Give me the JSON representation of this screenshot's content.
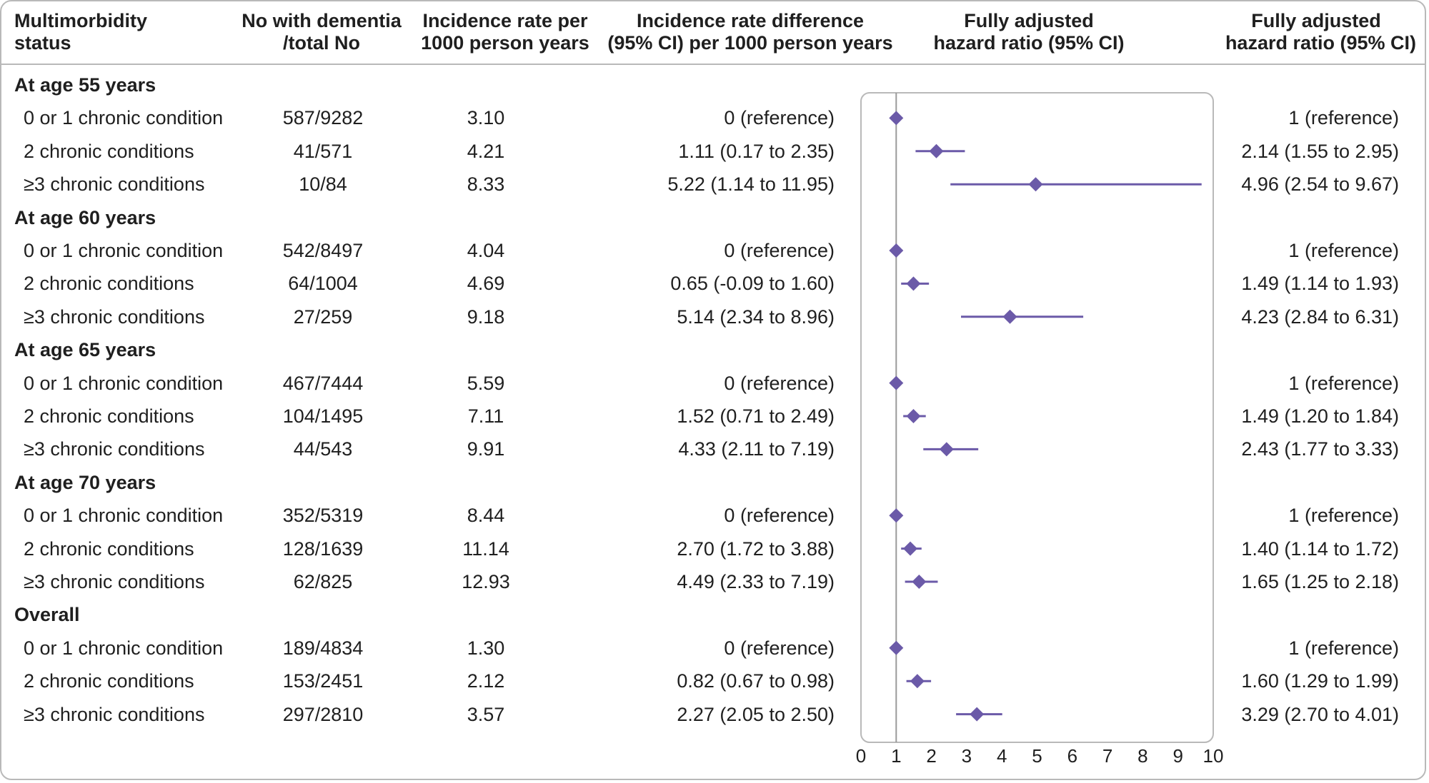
{
  "headers": {
    "status": [
      "Multimorbidity",
      "status"
    ],
    "n": [
      "No with dementia",
      "/total No"
    ],
    "ir": [
      "Incidence rate per",
      "1000 person years"
    ],
    "ird": [
      "Incidence rate difference",
      "(95% CI) per 1000 person years"
    ],
    "plot": [
      "Fully adjusted",
      "hazard ratio (95% CI)"
    ],
    "hr": [
      "Fully adjusted",
      "hazard ratio (95% CI)"
    ]
  },
  "rows": [
    {
      "type": "group",
      "label": "At age 55 years"
    },
    {
      "type": "data",
      "label": "0 or 1 chronic condition",
      "n": "587/9282",
      "ir": "3.10",
      "ird": "0 (reference)",
      "hr": "1 (reference)"
    },
    {
      "type": "data",
      "label": "2 chronic conditions",
      "n": "41/571",
      "ir": "4.21",
      "ird": "1.11 (0.17 to 2.35)",
      "hr": "2.14 (1.55 to 2.95)"
    },
    {
      "type": "data",
      "label": "≥3 chronic conditions",
      "n": "10/84",
      "ir": "8.33",
      "ird": "5.22 (1.14 to 11.95)",
      "hr": "4.96 (2.54 to 9.67)"
    },
    {
      "type": "group",
      "label": "At age 60 years"
    },
    {
      "type": "data",
      "label": "0 or 1 chronic condition",
      "n": "542/8497",
      "ir": "4.04",
      "ird": "0 (reference)",
      "hr": "1 (reference)"
    },
    {
      "type": "data",
      "label": "2 chronic conditions",
      "n": "64/1004",
      "ir": "4.69",
      "ird": "0.65 (-0.09 to 1.60)",
      "hr": "1.49 (1.14 to 1.93)"
    },
    {
      "type": "data",
      "label": "≥3 chronic conditions",
      "n": "27/259",
      "ir": "9.18",
      "ird": "5.14 (2.34 to 8.96)",
      "hr": "4.23 (2.84 to 6.31)"
    },
    {
      "type": "group",
      "label": "At age 65 years"
    },
    {
      "type": "data",
      "label": "0 or 1 chronic condition",
      "n": "467/7444",
      "ir": "5.59",
      "ird": "0 (reference)",
      "hr": "1 (reference)"
    },
    {
      "type": "data",
      "label": "2 chronic conditions",
      "n": "104/1495",
      "ir": "7.11",
      "ird": "1.52 (0.71 to 2.49)",
      "hr": "1.49 (1.20 to 1.84)"
    },
    {
      "type": "data",
      "label": "≥3 chronic conditions",
      "n": "44/543",
      "ir": "9.91",
      "ird": "4.33 (2.11 to 7.19)",
      "hr": "2.43 (1.77 to 3.33)"
    },
    {
      "type": "group",
      "label": "At age 70 years"
    },
    {
      "type": "data",
      "label": "0 or 1 chronic condition",
      "n": "352/5319",
      "ir": "8.44",
      "ird": "0 (reference)",
      "hr": "1 (reference)"
    },
    {
      "type": "data",
      "label": "2 chronic conditions",
      "n": "128/1639",
      "ir": "11.14",
      "ird": "2.70 (1.72 to 3.88)",
      "hr": "1.40 (1.14 to 1.72)"
    },
    {
      "type": "data",
      "label": "≥3 chronic conditions",
      "n": "62/825",
      "ir": "12.93",
      "ird": "4.49 (2.33 to 7.19)",
      "hr": "1.65 (1.25 to 2.18)"
    },
    {
      "type": "group",
      "label": "Overall"
    },
    {
      "type": "data",
      "label": "0 or 1 chronic condition",
      "n": "189/4834",
      "ir": "1.30",
      "ird": "0 (reference)",
      "hr": "1 (reference)"
    },
    {
      "type": "data",
      "label": "2 chronic conditions",
      "n": "153/2451",
      "ir": "2.12",
      "ird": "0.82 (0.67 to 0.98)",
      "hr": "1.60 (1.29 to 1.99)"
    },
    {
      "type": "data",
      "label": "≥3 chronic conditions",
      "n": "297/2810",
      "ir": "3.57",
      "ird": "2.27 (2.05 to 2.50)",
      "hr": "3.29 (2.70 to 4.01)"
    }
  ],
  "colors": {
    "marker": "#6b5aa8",
    "axis": "#9a9a9a",
    "frame": "#b9b9b9"
  },
  "chart_data": {
    "type": "scatter",
    "subtype": "forest",
    "title": "",
    "xlabel": "",
    "ylabel": "",
    "xlim": [
      0,
      10
    ],
    "xticks": [
      "0",
      "1",
      "2",
      "3",
      "4",
      "5",
      "6",
      "7",
      "8",
      "9",
      "10"
    ],
    "reference_line": 1,
    "grid": false,
    "groups": [
      "At age 55 years",
      "At age 60 years",
      "At age 65 years",
      "At age 70 years",
      "Overall"
    ],
    "categories": [
      "0 or 1 chronic condition",
      "2 chronic conditions",
      "≥3 chronic conditions"
    ],
    "points": [
      {
        "group": "At age 55 years",
        "category": "0 or 1 chronic condition",
        "hr": 1,
        "lo": null,
        "hi": null
      },
      {
        "group": "At age 55 years",
        "category": "2 chronic conditions",
        "hr": 2.14,
        "lo": 1.55,
        "hi": 2.95
      },
      {
        "group": "At age 55 years",
        "category": "≥3 chronic conditions",
        "hr": 4.96,
        "lo": 2.54,
        "hi": 9.67
      },
      {
        "group": "At age 60 years",
        "category": "0 or 1 chronic condition",
        "hr": 1,
        "lo": null,
        "hi": null
      },
      {
        "group": "At age 60 years",
        "category": "2 chronic conditions",
        "hr": 1.49,
        "lo": 1.14,
        "hi": 1.93
      },
      {
        "group": "At age 60 years",
        "category": "≥3 chronic conditions",
        "hr": 4.23,
        "lo": 2.84,
        "hi": 6.31
      },
      {
        "group": "At age 65 years",
        "category": "0 or 1 chronic condition",
        "hr": 1,
        "lo": null,
        "hi": null
      },
      {
        "group": "At age 65 years",
        "category": "2 chronic conditions",
        "hr": 1.49,
        "lo": 1.2,
        "hi": 1.84
      },
      {
        "group": "At age 65 years",
        "category": "≥3 chronic conditions",
        "hr": 2.43,
        "lo": 1.77,
        "hi": 3.33
      },
      {
        "group": "At age 70 years",
        "category": "0 or 1 chronic condition",
        "hr": 1,
        "lo": null,
        "hi": null
      },
      {
        "group": "At age 70 years",
        "category": "2 chronic conditions",
        "hr": 1.4,
        "lo": 1.14,
        "hi": 1.72
      },
      {
        "group": "At age 70 years",
        "category": "≥3 chronic conditions",
        "hr": 1.65,
        "lo": 1.25,
        "hi": 2.18
      },
      {
        "group": "Overall",
        "category": "0 or 1 chronic condition",
        "hr": 1,
        "lo": null,
        "hi": null
      },
      {
        "group": "Overall",
        "category": "2 chronic conditions",
        "hr": 1.6,
        "lo": 1.29,
        "hi": 1.99
      },
      {
        "group": "Overall",
        "category": "≥3 chronic conditions",
        "hr": 3.29,
        "lo": 2.7,
        "hi": 4.01
      }
    ]
  }
}
